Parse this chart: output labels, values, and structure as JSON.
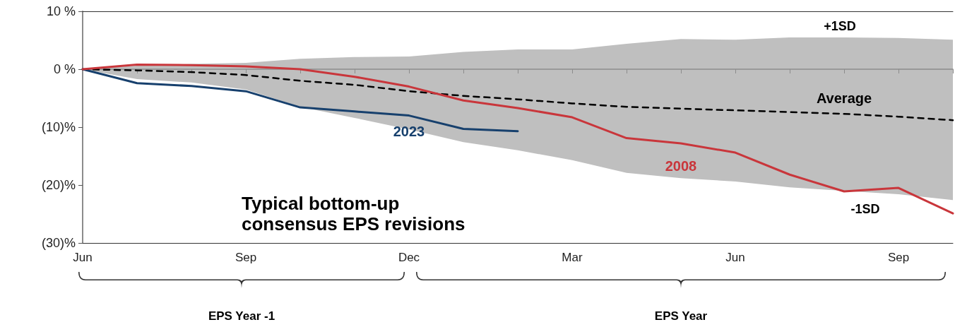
{
  "chart_data": {
    "type": "line",
    "title": "Typical bottom-up consensus EPS revisions",
    "categories": [
      "Jun",
      null,
      null,
      "Sep",
      null,
      null,
      "Dec",
      null,
      null,
      "Mar",
      null,
      null,
      "Jun",
      null,
      null,
      "Sep",
      null
    ],
    "series": [
      {
        "name": "Average",
        "color": "#000000",
        "line_style": "dashed",
        "values": [
          0,
          -0.2,
          -0.5,
          -1.0,
          -2.0,
          -2.7,
          -3.8,
          -4.6,
          -5.2,
          -5.9,
          -6.5,
          -6.8,
          -7.1,
          -7.4,
          -7.7,
          -8.2,
          -8.8
        ],
        "lower": [
          0,
          -1.7,
          -2.3,
          -3.5,
          -6.5,
          -8.4,
          -10.4,
          -12.6,
          -14.0,
          -15.7,
          -17.9,
          -18.8,
          -19.4,
          -20.4,
          -21.0,
          -21.6,
          -22.6
        ],
        "upper": [
          0,
          0.6,
          0.9,
          1.1,
          1.8,
          2.1,
          2.2,
          3.0,
          3.4,
          3.4,
          4.4,
          5.2,
          5.1,
          5.5,
          5.5,
          5.4,
          5.1
        ]
      },
      {
        "name": "2023",
        "color": "#17406d",
        "values": [
          0,
          -2.4,
          -2.9,
          -3.8,
          -6.6,
          -7.3,
          -8.0,
          -10.3,
          -10.7,
          null,
          null,
          null,
          null,
          null,
          null,
          null,
          null
        ]
      },
      {
        "name": "2008",
        "color": "#c9363b",
        "values": [
          0,
          0.8,
          0.7,
          0.5,
          0,
          -1.3,
          -3.0,
          -5.4,
          -6.7,
          -8.3,
          -11.9,
          -12.8,
          -14.4,
          -18.2,
          -21.1,
          -20.5,
          -24.9
        ]
      }
    ],
    "annotations": [
      "+1SD",
      "-1SD",
      "EPS Year -1",
      "EPS Year"
    ],
    "ylim": [
      -30,
      10
    ],
    "yticks": [
      {
        "value": -30,
        "label": "(30)%"
      },
      {
        "value": -20,
        "label": "(20)%"
      },
      {
        "value": -10,
        "label": "(10)%"
      },
      {
        "value": 0,
        "label": "0 %"
      },
      {
        "value": 10,
        "label": "10 %"
      }
    ],
    "legend": false,
    "marker": "none",
    "line_style": "solid"
  }
}
